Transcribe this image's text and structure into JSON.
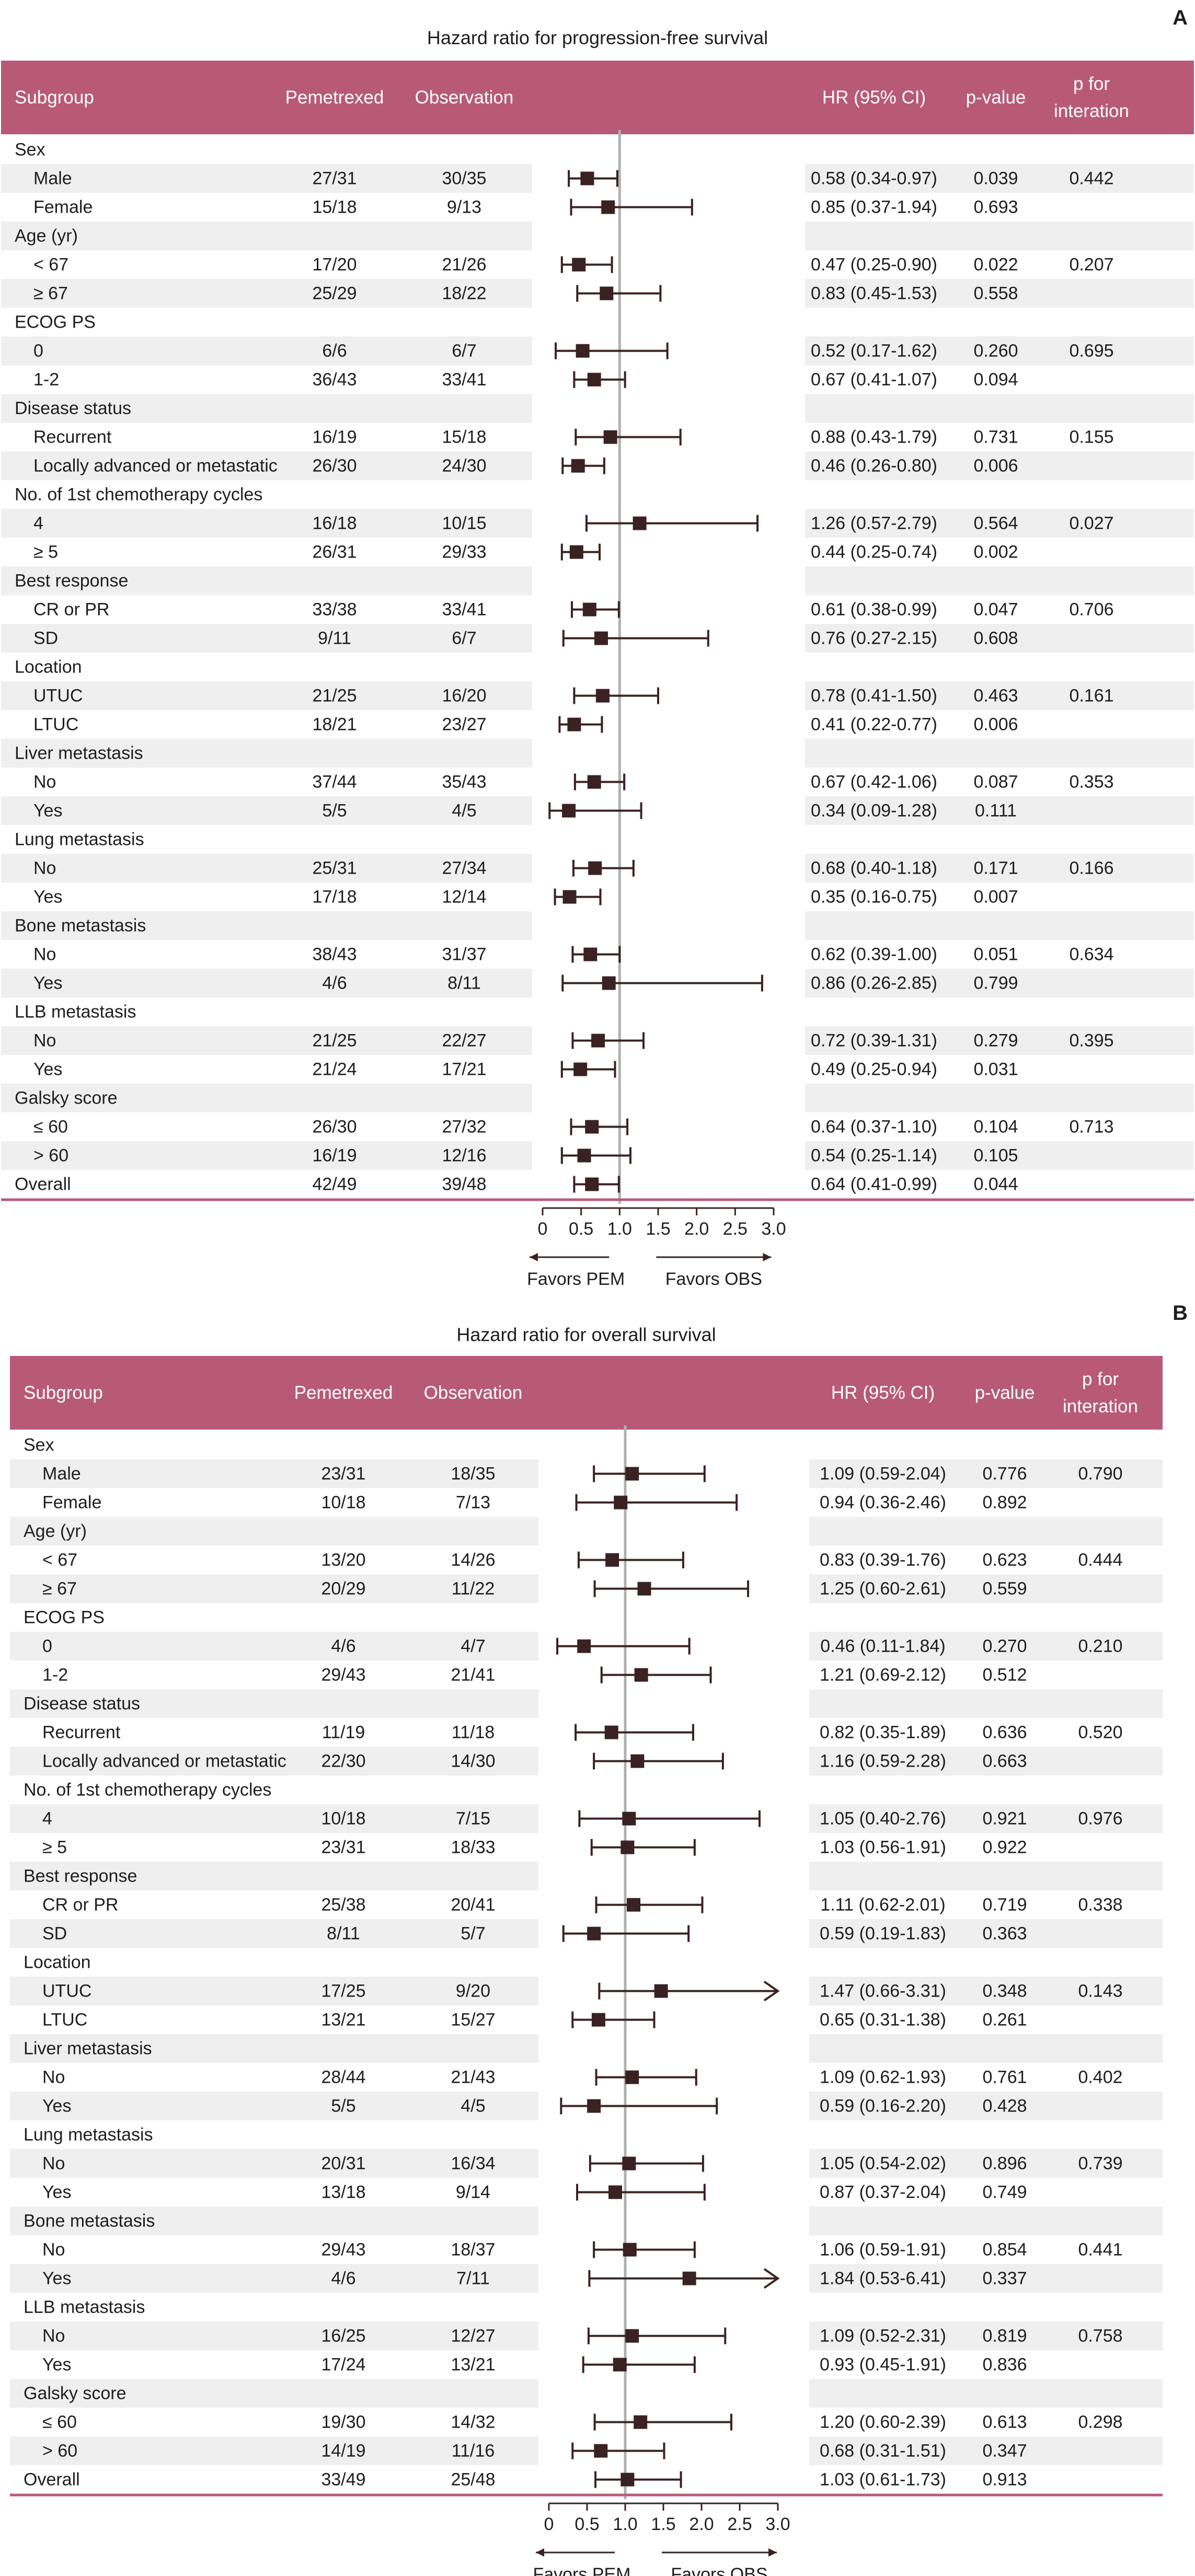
{
  "chart_data": [
    {
      "panel": "A",
      "type": "forest",
      "title": "Hazard ratio for progression-free survival",
      "columns": {
        "subgroup": "Subgroup",
        "pem": "Pemetrexed",
        "obs": "Observation",
        "hr": "HR (95% CI)",
        "p": "p-value",
        "pint_line1": "p for",
        "pint_line2": "interation"
      },
      "axis": {
        "ticks": [
          "0",
          "0.5",
          "1.0",
          "1.5",
          "2.0",
          "2.5",
          "3.0"
        ],
        "xlim": [
          0,
          3.0
        ],
        "reference_line": 1.0
      },
      "favors": {
        "left": "Favors PEM",
        "right": "Favors OBS"
      },
      "rows": [
        {
          "label": "Sex",
          "header": true
        },
        {
          "label": "Male",
          "pem": "27/31",
          "obs": "30/35",
          "hr": 0.58,
          "lo": 0.34,
          "hi": 0.97,
          "hr_text": "0.58 (0.34-0.97)",
          "p": "0.039",
          "pint": "0.442"
        },
        {
          "label": "Female",
          "pem": "15/18",
          "obs": "9/13",
          "hr": 0.85,
          "lo": 0.37,
          "hi": 1.94,
          "hr_text": "0.85 (0.37-1.94)",
          "p": "0.693",
          "pint": ""
        },
        {
          "label": "Age (yr)",
          "header": true
        },
        {
          "label": "< 67",
          "pem": "17/20",
          "obs": "21/26",
          "hr": 0.47,
          "lo": 0.25,
          "hi": 0.9,
          "hr_text": "0.47 (0.25-0.90)",
          "p": "0.022",
          "pint": "0.207"
        },
        {
          "label": "≥ 67",
          "pem": "25/29",
          "obs": "18/22",
          "hr": 0.83,
          "lo": 0.45,
          "hi": 1.53,
          "hr_text": "0.83 (0.45-1.53)",
          "p": "0.558",
          "pint": ""
        },
        {
          "label": "ECOG PS",
          "header": true
        },
        {
          "label": "0",
          "pem": "6/6",
          "obs": "6/7",
          "hr": 0.52,
          "lo": 0.17,
          "hi": 1.62,
          "hr_text": "0.52 (0.17-1.62)",
          "p": "0.260",
          "pint": "0.695"
        },
        {
          "label": "1-2",
          "pem": "36/43",
          "obs": "33/41",
          "hr": 0.67,
          "lo": 0.41,
          "hi": 1.07,
          "hr_text": "0.67 (0.41-1.07)",
          "p": "0.094",
          "pint": ""
        },
        {
          "label": "Disease status",
          "header": true
        },
        {
          "label": "Recurrent",
          "pem": "16/19",
          "obs": "15/18",
          "hr": 0.88,
          "lo": 0.43,
          "hi": 1.79,
          "hr_text": "0.88 (0.43-1.79)",
          "p": "0.731",
          "pint": "0.155"
        },
        {
          "label": "Locally advanced or metastatic",
          "pem": "26/30",
          "obs": "24/30",
          "hr": 0.46,
          "lo": 0.26,
          "hi": 0.8,
          "hr_text": "0.46 (0.26-0.80)",
          "p": "0.006",
          "pint": ""
        },
        {
          "label": "No. of 1st chemotherapy cycles",
          "header": true
        },
        {
          "label": "4",
          "pem": "16/18",
          "obs": "10/15",
          "hr": 1.26,
          "lo": 0.57,
          "hi": 2.79,
          "hr_text": "1.26 (0.57-2.79)",
          "p": "0.564",
          "pint": "0.027"
        },
        {
          "label": "≥ 5",
          "pem": "26/31",
          "obs": "29/33",
          "hr": 0.44,
          "lo": 0.25,
          "hi": 0.74,
          "hr_text": "0.44 (0.25-0.74)",
          "p": "0.002",
          "pint": ""
        },
        {
          "label": "Best response",
          "header": true
        },
        {
          "label": "CR or PR",
          "pem": "33/38",
          "obs": "33/41",
          "hr": 0.61,
          "lo": 0.38,
          "hi": 0.99,
          "hr_text": "0.61 (0.38-0.99)",
          "p": "0.047",
          "pint": "0.706"
        },
        {
          "label": "SD",
          "pem": "9/11",
          "obs": "6/7",
          "hr": 0.76,
          "lo": 0.27,
          "hi": 2.15,
          "hr_text": "0.76 (0.27-2.15)",
          "p": "0.608",
          "pint": ""
        },
        {
          "label": "Location",
          "header": true
        },
        {
          "label": "UTUC",
          "pem": "21/25",
          "obs": "16/20",
          "hr": 0.78,
          "lo": 0.41,
          "hi": 1.5,
          "hr_text": "0.78 (0.41-1.50)",
          "p": "0.463",
          "pint": "0.161"
        },
        {
          "label": "LTUC",
          "pem": "18/21",
          "obs": "23/27",
          "hr": 0.41,
          "lo": 0.22,
          "hi": 0.77,
          "hr_text": "0.41 (0.22-0.77)",
          "p": "0.006",
          "pint": ""
        },
        {
          "label": "Liver metastasis",
          "header": true
        },
        {
          "label": "No",
          "pem": "37/44",
          "obs": "35/43",
          "hr": 0.67,
          "lo": 0.42,
          "hi": 1.06,
          "hr_text": "0.67 (0.42-1.06)",
          "p": "0.087",
          "pint": "0.353"
        },
        {
          "label": "Yes",
          "pem": "5/5",
          "obs": "4/5",
          "hr": 0.34,
          "lo": 0.09,
          "hi": 1.28,
          "hr_text": "0.34 (0.09-1.28)",
          "p": "0.111",
          "pint": ""
        },
        {
          "label": "Lung metastasis",
          "header": true
        },
        {
          "label": "No",
          "pem": "25/31",
          "obs": "27/34",
          "hr": 0.68,
          "lo": 0.4,
          "hi": 1.18,
          "hr_text": "0.68 (0.40-1.18)",
          "p": "0.171",
          "pint": "0.166"
        },
        {
          "label": "Yes",
          "pem": "17/18",
          "obs": "12/14",
          "hr": 0.35,
          "lo": 0.16,
          "hi": 0.75,
          "hr_text": "0.35 (0.16-0.75)",
          "p": "0.007",
          "pint": ""
        },
        {
          "label": "Bone metastasis",
          "header": true
        },
        {
          "label": "No",
          "pem": "38/43",
          "obs": "31/37",
          "hr": 0.62,
          "lo": 0.39,
          "hi": 1.0,
          "hr_text": "0.62 (0.39-1.00)",
          "p": "0.051",
          "pint": "0.634"
        },
        {
          "label": "Yes",
          "pem": "4/6",
          "obs": "8/11",
          "hr": 0.86,
          "lo": 0.26,
          "hi": 2.85,
          "hr_text": "0.86 (0.26-2.85)",
          "p": "0.799",
          "pint": ""
        },
        {
          "label": "LLB metastasis",
          "header": true
        },
        {
          "label": "No",
          "pem": "21/25",
          "obs": "22/27",
          "hr": 0.72,
          "lo": 0.39,
          "hi": 1.31,
          "hr_text": "0.72 (0.39-1.31)",
          "p": "0.279",
          "pint": "0.395"
        },
        {
          "label": "Yes",
          "pem": "21/24",
          "obs": "17/21",
          "hr": 0.49,
          "lo": 0.25,
          "hi": 0.94,
          "hr_text": "0.49 (0.25-0.94)",
          "p": "0.031",
          "pint": ""
        },
        {
          "label": "Galsky score",
          "header": true
        },
        {
          "label": "≤ 60",
          "pem": "26/30",
          "obs": "27/32",
          "hr": 0.64,
          "lo": 0.37,
          "hi": 1.1,
          "hr_text": "0.64 (0.37-1.10)",
          "p": "0.104",
          "pint": "0.713"
        },
        {
          "label": "> 60",
          "pem": "16/19",
          "obs": "12/16",
          "hr": 0.54,
          "lo": 0.25,
          "hi": 1.14,
          "hr_text": "0.54 (0.25-1.14)",
          "p": "0.105",
          "pint": ""
        },
        {
          "label": "Overall",
          "overall": true,
          "pem": "42/49",
          "obs": "39/48",
          "hr": 0.64,
          "lo": 0.41,
          "hi": 0.99,
          "hr_text": "0.64 (0.41-0.99)",
          "p": "0.044",
          "pint": ""
        }
      ]
    },
    {
      "panel": "B",
      "type": "forest",
      "title": "Hazard ratio for overall survival",
      "columns": {
        "subgroup": "Subgroup",
        "pem": "Pemetrexed",
        "obs": "Observation",
        "hr": "HR (95% CI)",
        "p": "p-value",
        "pint_line1": "p for",
        "pint_line2": "interation"
      },
      "axis": {
        "ticks": [
          "0",
          "0.5",
          "1.0",
          "1.5",
          "2.0",
          "2.5",
          "3.0"
        ],
        "xlim": [
          0,
          3.0
        ],
        "reference_line": 1.0
      },
      "favors": {
        "left": "Favors PEM",
        "right": "Favors OBS"
      },
      "rows": [
        {
          "label": "Sex",
          "header": true
        },
        {
          "label": "Male",
          "pem": "23/31",
          "obs": "18/35",
          "hr": 1.09,
          "lo": 0.59,
          "hi": 2.04,
          "hr_text": "1.09 (0.59-2.04)",
          "p": "0.776",
          "pint": "0.790"
        },
        {
          "label": "Female",
          "pem": "10/18",
          "obs": "7/13",
          "hr": 0.94,
          "lo": 0.36,
          "hi": 2.46,
          "hr_text": "0.94 (0.36-2.46)",
          "p": "0.892",
          "pint": ""
        },
        {
          "label": "Age (yr)",
          "header": true
        },
        {
          "label": "< 67",
          "pem": "13/20",
          "obs": "14/26",
          "hr": 0.83,
          "lo": 0.39,
          "hi": 1.76,
          "hr_text": "0.83 (0.39-1.76)",
          "p": "0.623",
          "pint": "0.444"
        },
        {
          "label": "≥ 67",
          "pem": "20/29",
          "obs": "11/22",
          "hr": 1.25,
          "lo": 0.6,
          "hi": 2.61,
          "hr_text": "1.25 (0.60-2.61)",
          "p": "0.559",
          "pint": ""
        },
        {
          "label": "ECOG PS",
          "header": true
        },
        {
          "label": "0",
          "pem": "4/6",
          "obs": "4/7",
          "hr": 0.46,
          "lo": 0.11,
          "hi": 1.84,
          "hr_text": "0.46 (0.11-1.84)",
          "p": "0.270",
          "pint": "0.210"
        },
        {
          "label": "1-2",
          "pem": "29/43",
          "obs": "21/41",
          "hr": 1.21,
          "lo": 0.69,
          "hi": 2.12,
          "hr_text": "1.21 (0.69-2.12)",
          "p": "0.512",
          "pint": ""
        },
        {
          "label": "Disease status",
          "header": true
        },
        {
          "label": "Recurrent",
          "pem": "11/19",
          "obs": "11/18",
          "hr": 0.82,
          "lo": 0.35,
          "hi": 1.89,
          "hr_text": "0.82 (0.35-1.89)",
          "p": "0.636",
          "pint": "0.520"
        },
        {
          "label": "Locally advanced or metastatic",
          "pem": "22/30",
          "obs": "14/30",
          "hr": 1.16,
          "lo": 0.59,
          "hi": 2.28,
          "hr_text": "1.16 (0.59-2.28)",
          "p": "0.663",
          "pint": ""
        },
        {
          "label": "No. of 1st chemotherapy cycles",
          "header": true
        },
        {
          "label": "4",
          "pem": "10/18",
          "obs": "7/15",
          "hr": 1.05,
          "lo": 0.4,
          "hi": 2.76,
          "hr_text": "1.05 (0.40-2.76)",
          "p": "0.921",
          "pint": "0.976"
        },
        {
          "label": "≥ 5",
          "pem": "23/31",
          "obs": "18/33",
          "hr": 1.03,
          "lo": 0.56,
          "hi": 1.91,
          "hr_text": "1.03 (0.56-1.91)",
          "p": "0.922",
          "pint": ""
        },
        {
          "label": "Best response",
          "header": true
        },
        {
          "label": "CR or PR",
          "pem": "25/38",
          "obs": "20/41",
          "hr": 1.11,
          "lo": 0.62,
          "hi": 2.01,
          "hr_text": "1.11 (0.62-2.01)",
          "p": "0.719",
          "pint": "0.338"
        },
        {
          "label": "SD",
          "pem": "8/11",
          "obs": "5/7",
          "hr": 0.59,
          "lo": 0.19,
          "hi": 1.83,
          "hr_text": "0.59 (0.19-1.83)",
          "p": "0.363",
          "pint": ""
        },
        {
          "label": "Location",
          "header": true
        },
        {
          "label": "UTUC",
          "pem": "17/25",
          "obs": "9/20",
          "hr": 1.47,
          "lo": 0.66,
          "hi": 3.31,
          "hr_text": "1.47 (0.66-3.31)",
          "p": "0.348",
          "pint": "0.143"
        },
        {
          "label": "LTUC",
          "pem": "13/21",
          "obs": "15/27",
          "hr": 0.65,
          "lo": 0.31,
          "hi": 1.38,
          "hr_text": "0.65 (0.31-1.38)",
          "p": "0.261",
          "pint": ""
        },
        {
          "label": "Liver metastasis",
          "header": true
        },
        {
          "label": "No",
          "pem": "28/44",
          "obs": "21/43",
          "hr": 1.09,
          "lo": 0.62,
          "hi": 1.93,
          "hr_text": "1.09 (0.62-1.93)",
          "p": "0.761",
          "pint": "0.402"
        },
        {
          "label": "Yes",
          "pem": "5/5",
          "obs": "4/5",
          "hr": 0.59,
          "lo": 0.16,
          "hi": 2.2,
          "hr_text": "0.59 (0.16-2.20)",
          "p": "0.428",
          "pint": ""
        },
        {
          "label": "Lung metastasis",
          "header": true
        },
        {
          "label": "No",
          "pem": "20/31",
          "obs": "16/34",
          "hr": 1.05,
          "lo": 0.54,
          "hi": 2.02,
          "hr_text": "1.05 (0.54-2.02)",
          "p": "0.896",
          "pint": "0.739"
        },
        {
          "label": "Yes",
          "pem": "13/18",
          "obs": "9/14",
          "hr": 0.87,
          "lo": 0.37,
          "hi": 2.04,
          "hr_text": "0.87 (0.37-2.04)",
          "p": "0.749",
          "pint": ""
        },
        {
          "label": "Bone metastasis",
          "header": true
        },
        {
          "label": "No",
          "pem": "29/43",
          "obs": "18/37",
          "hr": 1.06,
          "lo": 0.59,
          "hi": 1.91,
          "hr_text": "1.06 (0.59-1.91)",
          "p": "0.854",
          "pint": "0.441"
        },
        {
          "label": "Yes",
          "pem": "4/6",
          "obs": "7/11",
          "hr": 1.84,
          "lo": 0.53,
          "hi": 6.41,
          "hr_text": "1.84 (0.53-6.41)",
          "p": "0.337",
          "pint": ""
        },
        {
          "label": "LLB metastasis",
          "header": true
        },
        {
          "label": "No",
          "pem": "16/25",
          "obs": "12/27",
          "hr": 1.09,
          "lo": 0.52,
          "hi": 2.31,
          "hr_text": "1.09 (0.52-2.31)",
          "p": "0.819",
          "pint": "0.758"
        },
        {
          "label": "Yes",
          "pem": "17/24",
          "obs": "13/21",
          "hr": 0.93,
          "lo": 0.45,
          "hi": 1.91,
          "hr_text": "0.93 (0.45-1.91)",
          "p": "0.836",
          "pint": ""
        },
        {
          "label": "Galsky score",
          "header": true
        },
        {
          "label": "≤ 60",
          "pem": "19/30",
          "obs": "14/32",
          "hr": 1.2,
          "lo": 0.6,
          "hi": 2.39,
          "hr_text": "1.20 (0.60-2.39)",
          "p": "0.613",
          "pint": "0.298"
        },
        {
          "label": "> 60",
          "pem": "14/19",
          "obs": "11/16",
          "hr": 0.68,
          "lo": 0.31,
          "hi": 1.51,
          "hr_text": "0.68 (0.31-1.51)",
          "p": "0.347",
          "pint": ""
        },
        {
          "label": "Overall",
          "overall": true,
          "pem": "33/49",
          "obs": "25/48",
          "hr": 1.03,
          "lo": 0.61,
          "hi": 1.73,
          "hr_text": "1.03 (0.61-1.73)",
          "p": "0.913",
          "pint": ""
        }
      ]
    }
  ],
  "colors": {
    "header_band": "#b85a77",
    "header_text": "#ffffff",
    "stripe": "#efefef",
    "marker": "#3a2222",
    "reference_line": "#b0b0b0",
    "bottom_rule": "#b85a77",
    "text": "#1e1e1e"
  }
}
